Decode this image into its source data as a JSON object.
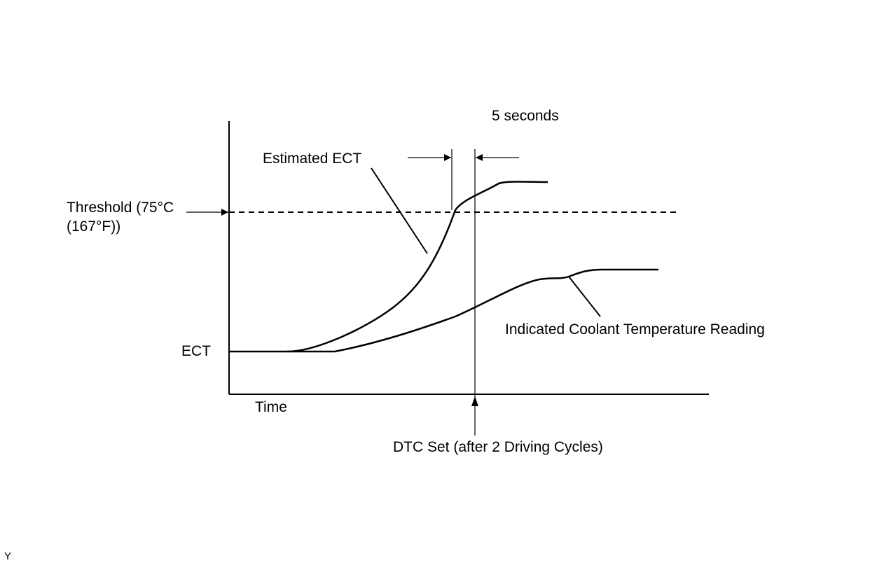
{
  "labels": {
    "interval": "5 seconds",
    "estimated_ect": "Estimated ECT",
    "threshold_line1": "Threshold  (75°C",
    "threshold_line2": "(167°F))",
    "ect": "ECT",
    "time": "Time",
    "indicated_reading": "Indicated Coolant Temperature Reading",
    "dtc_set": "DTC Set (after 2 Driving Cycles)"
  },
  "corner_mark": "Y",
  "colors": {
    "ink": "#000000",
    "background": "#ffffff"
  }
}
